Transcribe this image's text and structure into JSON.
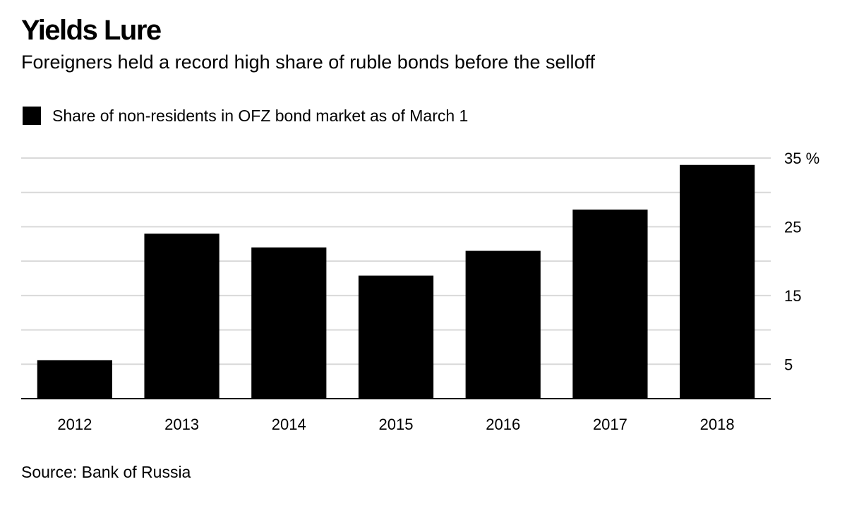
{
  "header": {
    "title": "Yields Lure",
    "subtitle": "Foreigners held a record high share of ruble bonds before the selloff"
  },
  "legend": {
    "label": "Share of non-residents in OFZ bond market as of March 1"
  },
  "footer": {
    "source": "Source: Bank of Russia"
  },
  "chart_data": {
    "type": "bar",
    "title": "Yields Lure",
    "subtitle": "Foreigners held a record high share of ruble bonds before the selloff",
    "xlabel": "",
    "ylabel": "",
    "categories": [
      "2012",
      "2013",
      "2014",
      "2015",
      "2016",
      "2017",
      "2018"
    ],
    "series": [
      {
        "name": "Share of non-residents in OFZ bond market as of March 1",
        "values": [
          5.6,
          24.0,
          22.0,
          17.9,
          21.5,
          27.5,
          34.0
        ],
        "color": "#000000"
      }
    ],
    "ylim": [
      0,
      35
    ],
    "yticks": [
      5,
      10,
      15,
      20,
      25,
      30,
      35
    ],
    "ytick_labels": [
      "5",
      "",
      "15",
      "",
      "25",
      "",
      "35 %"
    ],
    "grid": true,
    "gridline_color": "#d9d9d9",
    "axis_color": "#000000",
    "legend_position": "top-left"
  }
}
